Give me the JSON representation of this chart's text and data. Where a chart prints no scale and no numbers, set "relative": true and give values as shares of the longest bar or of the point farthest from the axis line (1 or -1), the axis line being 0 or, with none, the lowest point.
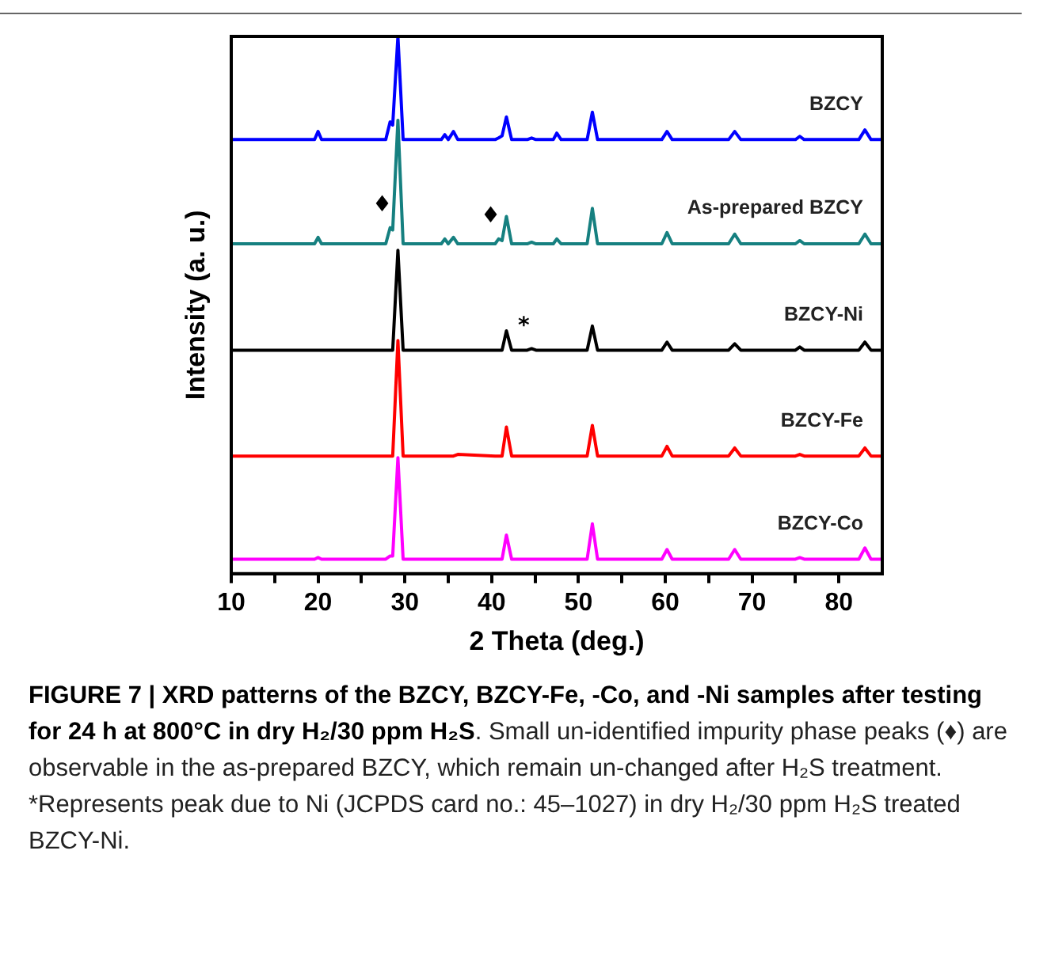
{
  "chart_data": {
    "type": "line",
    "relative": true,
    "xlabel": "2 Theta (deg.)",
    "ylabel": "Intensity (a. u.)",
    "x": [
      10,
      19.6,
      20,
      20.4,
      27.8,
      28.3,
      28.6,
      29.2,
      29.8,
      34.2,
      34.6,
      35.0,
      35.6,
      36.1,
      40.4,
      40.8,
      41.2,
      41.7,
      42.3,
      44.1,
      44.6,
      45.1,
      47.1,
      47.5,
      48.0,
      51.0,
      51.6,
      52.2,
      59.6,
      60.2,
      60.8,
      67.3,
      68.0,
      68.7,
      75.0,
      75.5,
      76.0,
      82.3,
      83.0,
      83.7,
      85
    ],
    "xlim": [
      10,
      85
    ],
    "xticks": [
      10,
      {
        "value": 15,
        "label": null
      },
      20,
      {
        "value": 25,
        "label": null
      },
      30,
      {
        "value": 35,
        "label": null
      },
      40,
      {
        "value": 45,
        "label": null
      },
      50,
      {
        "value": 55,
        "label": null
      },
      60,
      {
        "value": 65,
        "label": null
      },
      70,
      {
        "value": 75,
        "label": null
      },
      80
    ],
    "series": [
      {
        "name": "BZCY",
        "color": "#0000ff",
        "values": [
          0.808,
          0.808,
          0.823,
          0.808,
          0.808,
          0.841,
          0.835,
          1.0,
          0.808,
          0.808,
          0.817,
          0.808,
          0.823,
          0.808,
          0.808,
          0.811,
          0.815,
          0.85,
          0.808,
          0.808,
          0.811,
          0.808,
          0.808,
          0.82,
          0.808,
          0.808,
          0.859,
          0.808,
          0.808,
          0.823,
          0.808,
          0.808,
          0.823,
          0.808,
          0.808,
          0.814,
          0.808,
          0.808,
          0.826,
          0.808,
          0.808
        ]
      },
      {
        "name": "As-prepared BZCY",
        "color": "#168080",
        "values": [
          0.614,
          0.614,
          0.626,
          0.614,
          0.614,
          0.644,
          0.64,
          0.844,
          0.614,
          0.614,
          0.623,
          0.614,
          0.626,
          0.614,
          0.614,
          0.623,
          0.62,
          0.665,
          0.614,
          0.614,
          0.617,
          0.614,
          0.614,
          0.623,
          0.614,
          0.614,
          0.68,
          0.614,
          0.614,
          0.635,
          0.614,
          0.614,
          0.632,
          0.614,
          0.614,
          0.62,
          0.614,
          0.614,
          0.632,
          0.614,
          0.614
        ]
      },
      {
        "name": "BZCY-Ni",
        "color": "#000000",
        "values": [
          0.416,
          0.416,
          0.416,
          0.416,
          0.416,
          0.416,
          0.416,
          0.602,
          0.416,
          0.416,
          0.416,
          0.416,
          0.416,
          0.416,
          0.416,
          0.416,
          0.416,
          0.452,
          0.416,
          0.416,
          0.419,
          0.416,
          0.416,
          0.416,
          0.416,
          0.416,
          0.461,
          0.416,
          0.416,
          0.431,
          0.416,
          0.416,
          0.428,
          0.416,
          0.416,
          0.422,
          0.416,
          0.416,
          0.431,
          0.416,
          0.416
        ]
      },
      {
        "name": "BZCY-Fe",
        "color": "#ff0000",
        "values": [
          0.219,
          0.219,
          0.219,
          0.219,
          0.219,
          0.219,
          0.219,
          0.434,
          0.219,
          0.219,
          0.219,
          0.219,
          0.219,
          0.222,
          0.219,
          0.219,
          0.219,
          0.273,
          0.219,
          0.219,
          0.219,
          0.219,
          0.219,
          0.219,
          0.219,
          0.219,
          0.276,
          0.219,
          0.219,
          0.237,
          0.219,
          0.219,
          0.234,
          0.219,
          0.219,
          0.222,
          0.219,
          0.219,
          0.234,
          0.219,
          0.219
        ]
      },
      {
        "name": "BZCY-Co",
        "color": "#ff00ff",
        "values": [
          0.027,
          0.027,
          0.03,
          0.027,
          0.027,
          0.033,
          0.033,
          0.216,
          0.027,
          0.027,
          0.027,
          0.027,
          0.027,
          0.027,
          0.027,
          0.027,
          0.027,
          0.072,
          0.027,
          0.027,
          0.027,
          0.027,
          0.027,
          0.027,
          0.027,
          0.027,
          0.093,
          0.027,
          0.027,
          0.045,
          0.027,
          0.027,
          0.045,
          0.027,
          0.027,
          0.03,
          0.027,
          0.027,
          0.048,
          0.027,
          0.027
        ]
      }
    ],
    "marker": "none",
    "legend": false,
    "grid": false,
    "annotations": [
      {
        "text": "♦",
        "x": 28.3,
        "y": 0.644
      },
      {
        "text": "♦",
        "x": 40.8,
        "y": 0.623
      },
      {
        "text": "*",
        "x": 44.6,
        "y": 0.419
      },
      "FIGURE 7 | XRD patterns of the BZCY, BZCY-Fe, -Co, and -Ni samples after testing for 24 h at 800°C in dry H₂/30 ppm H₂S",
      ". Small un-identified impurity phase peaks (♦) are observable in the as-prepared BZCY, which remain un-changed after H₂S treatment. *Represents peak due to Ni (JCPDS card no.: 45–1027) in dry H₂/30 ppm H₂S treated BZCY-Ni."
    ]
  }
}
